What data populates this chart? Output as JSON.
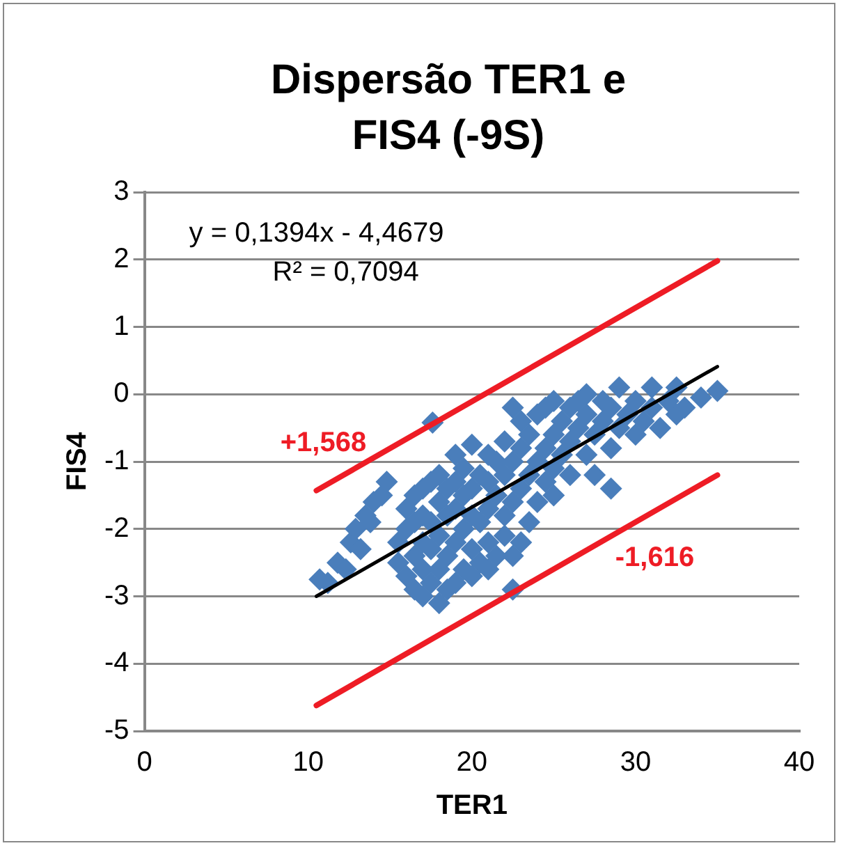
{
  "chart_data": {
    "type": "scatter",
    "title": "Dispersão TER1 e FIS4 (-9S)",
    "xlabel": "TER1",
    "ylabel": "FIS4",
    "xlim": [
      0,
      40
    ],
    "xticks": [
      0,
      10,
      20,
      30,
      40
    ],
    "ylim": [
      -5,
      3
    ],
    "yticks": [
      -5,
      -4,
      -3,
      -2,
      -1,
      0,
      1,
      2,
      3
    ],
    "grid": "y",
    "legend": false,
    "annotations": [
      "y = 0,1394x - 4,4679",
      "R² = 0,7094"
    ],
    "series": [
      {
        "color": "#4a7ebb",
        "marker": "diamond",
        "x": [
          10.7,
          11.2,
          11.8,
          12.3,
          12.6,
          12.9,
          13.2,
          13.5,
          13.8,
          14.0,
          14.5,
          14.8,
          17.6,
          15.5,
          15.5,
          16,
          16,
          16,
          16.5,
          16.5,
          16.5,
          16.5,
          17,
          17,
          17,
          17,
          17,
          17.5,
          17.5,
          17.5,
          17.5,
          18,
          18,
          18,
          18,
          18,
          18.5,
          18.5,
          18.5,
          18.5,
          19,
          19,
          19,
          19,
          19,
          19.5,
          19.5,
          19.5,
          19.5,
          20,
          20,
          20,
          20,
          20,
          20.5,
          20.5,
          20.5,
          21,
          21,
          21,
          21,
          21,
          21.5,
          21.5,
          21.5,
          22,
          22,
          22,
          22,
          22.5,
          22.5,
          22.5,
          22.5,
          22.5,
          23,
          23,
          23,
          23,
          23.5,
          23.5,
          23.5,
          24,
          24,
          24,
          24.5,
          24.5,
          24.5,
          25,
          25,
          25,
          25,
          25.5,
          25.5,
          26,
          26,
          26,
          26.5,
          26.5,
          27,
          27,
          27,
          27.5,
          27.5,
          28,
          28,
          28.5,
          28.5,
          28.5,
          29,
          29,
          29.5,
          30,
          30,
          30.5,
          31,
          31,
          31.5,
          32,
          32.5,
          32.5,
          33,
          34,
          35
        ],
        "values": [
          -2.75,
          -2.8,
          -2.5,
          -2.6,
          -2.2,
          -2.0,
          -2.3,
          -1.8,
          -1.9,
          -1.6,
          -1.5,
          -1.3,
          -0.42,
          -2.5,
          -2.2,
          -2.7,
          -2.0,
          -1.7,
          -2.9,
          -2.4,
          -1.9,
          -1.5,
          -3.0,
          -2.6,
          -2.2,
          -1.8,
          -1.4,
          -2.8,
          -2.3,
          -1.9,
          -1.3,
          -3.1,
          -2.6,
          -2.1,
          -1.6,
          -1.2,
          -2.9,
          -2.4,
          -1.8,
          -1.4,
          -2.8,
          -2.2,
          -1.7,
          -1.3,
          -0.9,
          -2.6,
          -2.0,
          -1.5,
          -1.1,
          -2.7,
          -2.3,
          -1.8,
          -1.4,
          -0.75,
          -2.5,
          -1.9,
          -1.2,
          -2.6,
          -2.2,
          -1.7,
          -1.3,
          -0.9,
          -2.4,
          -1.5,
          -1.0,
          -2.1,
          -1.8,
          -1.2,
          -0.7,
          -2.9,
          -2.4,
          -1.6,
          -1.0,
          -0.2,
          -2.2,
          -1.4,
          -0.8,
          -0.4,
          -1.9,
          -1.2,
          -0.6,
          -1.6,
          -1.0,
          -0.3,
          -1.3,
          -0.8,
          -0.2,
          -1.5,
          -1.1,
          -0.6,
          -0.1,
          -0.9,
          -0.4,
          -1.2,
          -0.7,
          -0.2,
          -0.5,
          -0.1,
          -0.9,
          -0.3,
          0.0,
          -1.2,
          -0.6,
          -0.4,
          -0.1,
          -1.4,
          -0.8,
          -0.2,
          -0.5,
          0.1,
          -0.3,
          -0.6,
          -0.1,
          -0.4,
          -0.2,
          0.1,
          -0.5,
          -0.1,
          -0.3,
          0.1,
          -0.2,
          -0.05,
          0.05
        ]
      },
      {
        "type": "line",
        "marker": "none",
        "color": "#000000",
        "x": [
          10.5,
          35
        ],
        "values": [
          -3.0,
          0.41
        ]
      },
      {
        "type": "line",
        "marker": "none",
        "name": "+1,568",
        "color": "#ee1c25",
        "x": [
          10.5,
          35
        ],
        "values": [
          -1.43,
          1.98
        ]
      },
      {
        "type": "line",
        "marker": "none",
        "name": "-1,616",
        "color": "#ee1c25",
        "x": [
          10.5,
          35
        ],
        "values": [
          -4.62,
          -1.2
        ]
      }
    ]
  }
}
